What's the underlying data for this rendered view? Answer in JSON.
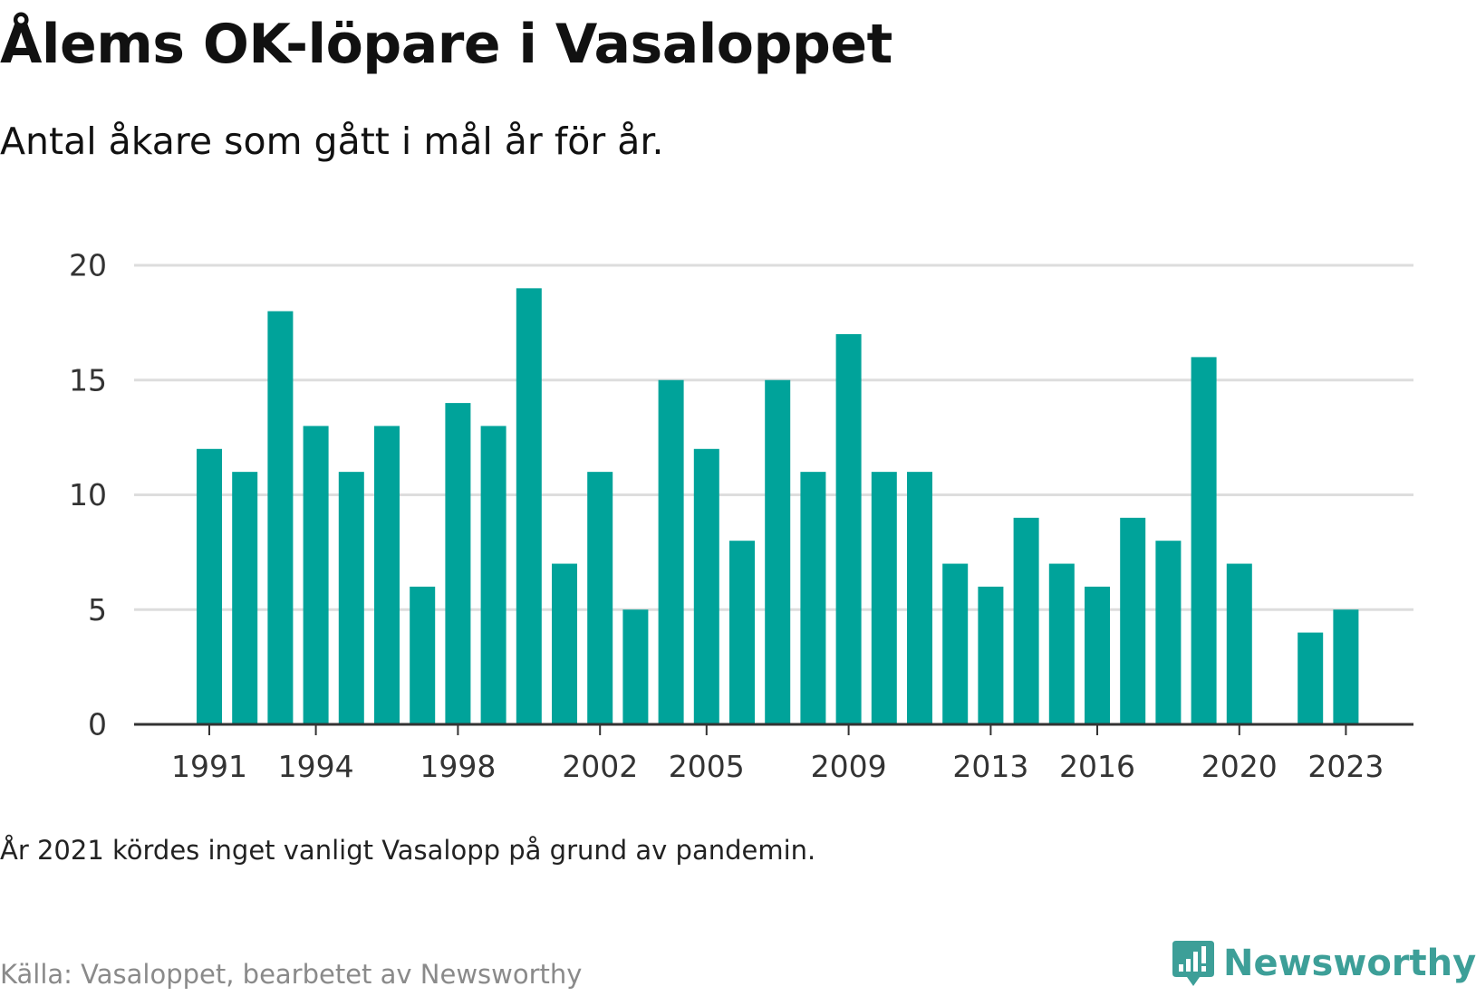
{
  "header": {
    "title": "Ålems OK-löpare i Vasaloppet",
    "subtitle": "Antal åkare som gått i mål år för år."
  },
  "chart_data": {
    "type": "bar",
    "title": "Ålems OK-löpare i Vasaloppet",
    "subtitle": "Antal åkare som gått i mål år för år.",
    "xlabel": "",
    "ylabel": "",
    "categories": [
      1991,
      1992,
      1993,
      1994,
      1995,
      1996,
      1997,
      1998,
      1999,
      2000,
      2001,
      2002,
      2003,
      2004,
      2005,
      2006,
      2007,
      2008,
      2009,
      2010,
      2011,
      2012,
      2013,
      2014,
      2015,
      2016,
      2017,
      2018,
      2019,
      2020,
      2021,
      2022,
      2023
    ],
    "values": [
      12,
      11,
      18,
      13,
      11,
      13,
      6,
      14,
      13,
      19,
      7,
      11,
      5,
      15,
      12,
      8,
      15,
      11,
      17,
      11,
      11,
      7,
      6,
      9,
      7,
      6,
      9,
      8,
      16,
      7,
      0,
      4,
      5
    ],
    "x_ticks": [
      "1991",
      "1994",
      "1998",
      "2002",
      "2005",
      "2009",
      "2013",
      "2016",
      "2020",
      "2023"
    ],
    "y_ticks": [
      "0",
      "5",
      "10",
      "15",
      "20"
    ],
    "ylim": [
      0,
      20
    ],
    "grid": true,
    "legend": "none"
  },
  "colors": {
    "bar": "#00a39a",
    "grid": "#dddddd",
    "axis": "#333333",
    "logo": "#3d9f98"
  },
  "footer": {
    "note": "År 2021 kördes inget vanligt Vasalopp på grund av pandemin.",
    "source": "Källa: Vasaloppet, bearbetet av Newsworthy"
  },
  "logo": {
    "text": "Newsworthy",
    "icon": "newsworthy-logo-icon"
  }
}
